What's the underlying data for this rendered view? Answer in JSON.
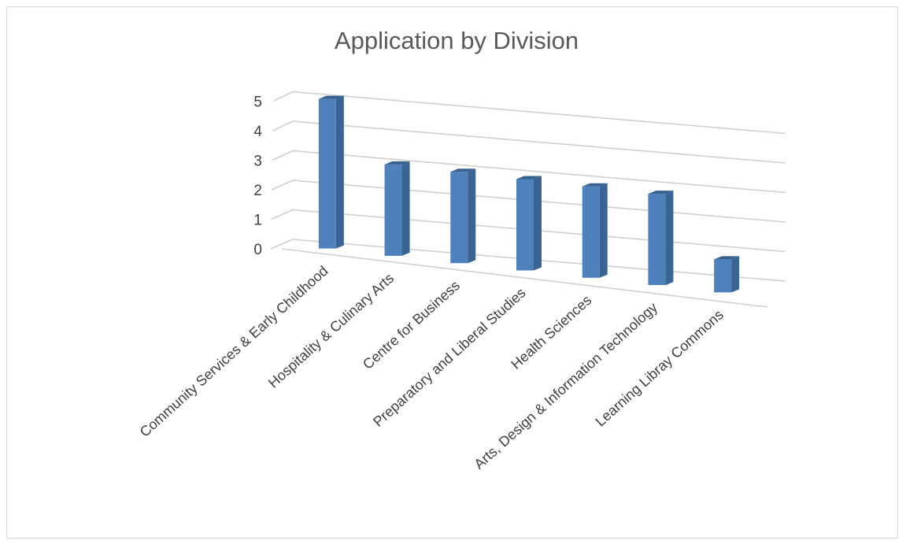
{
  "chart_data": {
    "type": "bar",
    "title": "Application by Division",
    "categories": [
      "Community Services & Early Childhood",
      "Hospitality & Culinary Arts",
      "Centre for Business",
      "Preparatory and Liberal Studies",
      "Health Sciences",
      "Arts, Design & Information Technology",
      "Learning Libray Commons"
    ],
    "values": [
      5,
      3,
      3,
      3,
      3,
      3,
      1
    ],
    "ylim": [
      0,
      5
    ],
    "yticks": [
      "0",
      "1",
      "2",
      "3",
      "4",
      "5"
    ],
    "grid": true,
    "legend": "none",
    "bar_color": "#4f81bd"
  }
}
